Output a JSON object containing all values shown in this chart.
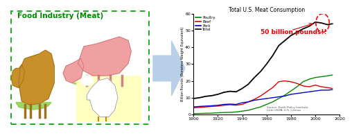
{
  "title": "Total U.S. Meat Consumption",
  "ylabel": "Billion Pounds (Boneless Weight Equivalent)",
  "xlabel_ticks": [
    1900,
    1920,
    1940,
    1960,
    1980,
    2000,
    2020
  ],
  "ylim": [
    0,
    60
  ],
  "yticks": [
    0,
    10,
    20,
    30,
    40,
    50,
    60
  ],
  "legend_labels": [
    "Poultry",
    "Beef",
    "Pork",
    "Total"
  ],
  "legend_colors": [
    "#008800",
    "#dd0000",
    "#0000cc",
    "#000000"
  ],
  "annotation_text": "50 billion pounds!!",
  "annotation_color": "#dd0000",
  "source_text": "Source: Earth Policy Institute,\nfrom USDA, U.S. Census",
  "left_panel_title": "Food Industry (Meat)",
  "left_panel_title_color": "#008800",
  "border_color": "#22aa22",
  "arrow_color": "#b8cfe8",
  "years_poultry": [
    1900,
    1905,
    1910,
    1915,
    1920,
    1925,
    1930,
    1935,
    1940,
    1945,
    1950,
    1955,
    1960,
    1965,
    1970,
    1975,
    1980,
    1985,
    1990,
    1995,
    2000,
    2005,
    2010,
    2014
  ],
  "vals_poultry": [
    0.5,
    0.6,
    0.7,
    0.8,
    1.0,
    1.2,
    1.3,
    1.5,
    2.0,
    2.5,
    3.5,
    4.5,
    6.0,
    7.5,
    9.5,
    11.5,
    14.0,
    16.5,
    19.5,
    21.0,
    22.0,
    22.5,
    23.0,
    23.5
  ],
  "years_beef": [
    1900,
    1905,
    1910,
    1915,
    1920,
    1925,
    1930,
    1935,
    1940,
    1945,
    1950,
    1955,
    1960,
    1965,
    1970,
    1975,
    1980,
    1985,
    1990,
    1995,
    2000,
    2005,
    2010,
    2014
  ],
  "vals_beef": [
    4.0,
    4.2,
    4.5,
    4.8,
    5.0,
    5.5,
    5.8,
    5.5,
    6.0,
    7.5,
    9.0,
    11.0,
    13.5,
    16.0,
    19.5,
    20.0,
    19.5,
    18.5,
    17.0,
    16.5,
    17.5,
    16.5,
    16.0,
    15.5
  ],
  "years_pork": [
    1900,
    1905,
    1910,
    1915,
    1920,
    1925,
    1930,
    1935,
    1940,
    1945,
    1950,
    1955,
    1960,
    1965,
    1970,
    1975,
    1980,
    1985,
    1990,
    1995,
    2000,
    2005,
    2010,
    2014
  ],
  "vals_pork": [
    4.5,
    4.8,
    5.0,
    5.2,
    5.5,
    6.0,
    6.2,
    6.0,
    7.0,
    7.5,
    8.5,
    9.0,
    9.5,
    10.0,
    10.5,
    11.0,
    12.0,
    12.5,
    13.0,
    13.5,
    14.0,
    14.5,
    14.5,
    14.8
  ],
  "years_total": [
    1900,
    1905,
    1910,
    1915,
    1920,
    1925,
    1930,
    1935,
    1940,
    1945,
    1950,
    1955,
    1960,
    1965,
    1970,
    1975,
    1980,
    1985,
    1990,
    1995,
    2000,
    2005,
    2010,
    2014
  ],
  "vals_total": [
    9.5,
    10.0,
    10.8,
    11.2,
    12.0,
    13.2,
    13.8,
    13.5,
    15.5,
    18.0,
    22.0,
    25.5,
    30.0,
    35.0,
    41.0,
    44.0,
    47.0,
    49.0,
    51.0,
    52.5,
    55.0,
    54.5,
    53.5,
    54.0
  ]
}
